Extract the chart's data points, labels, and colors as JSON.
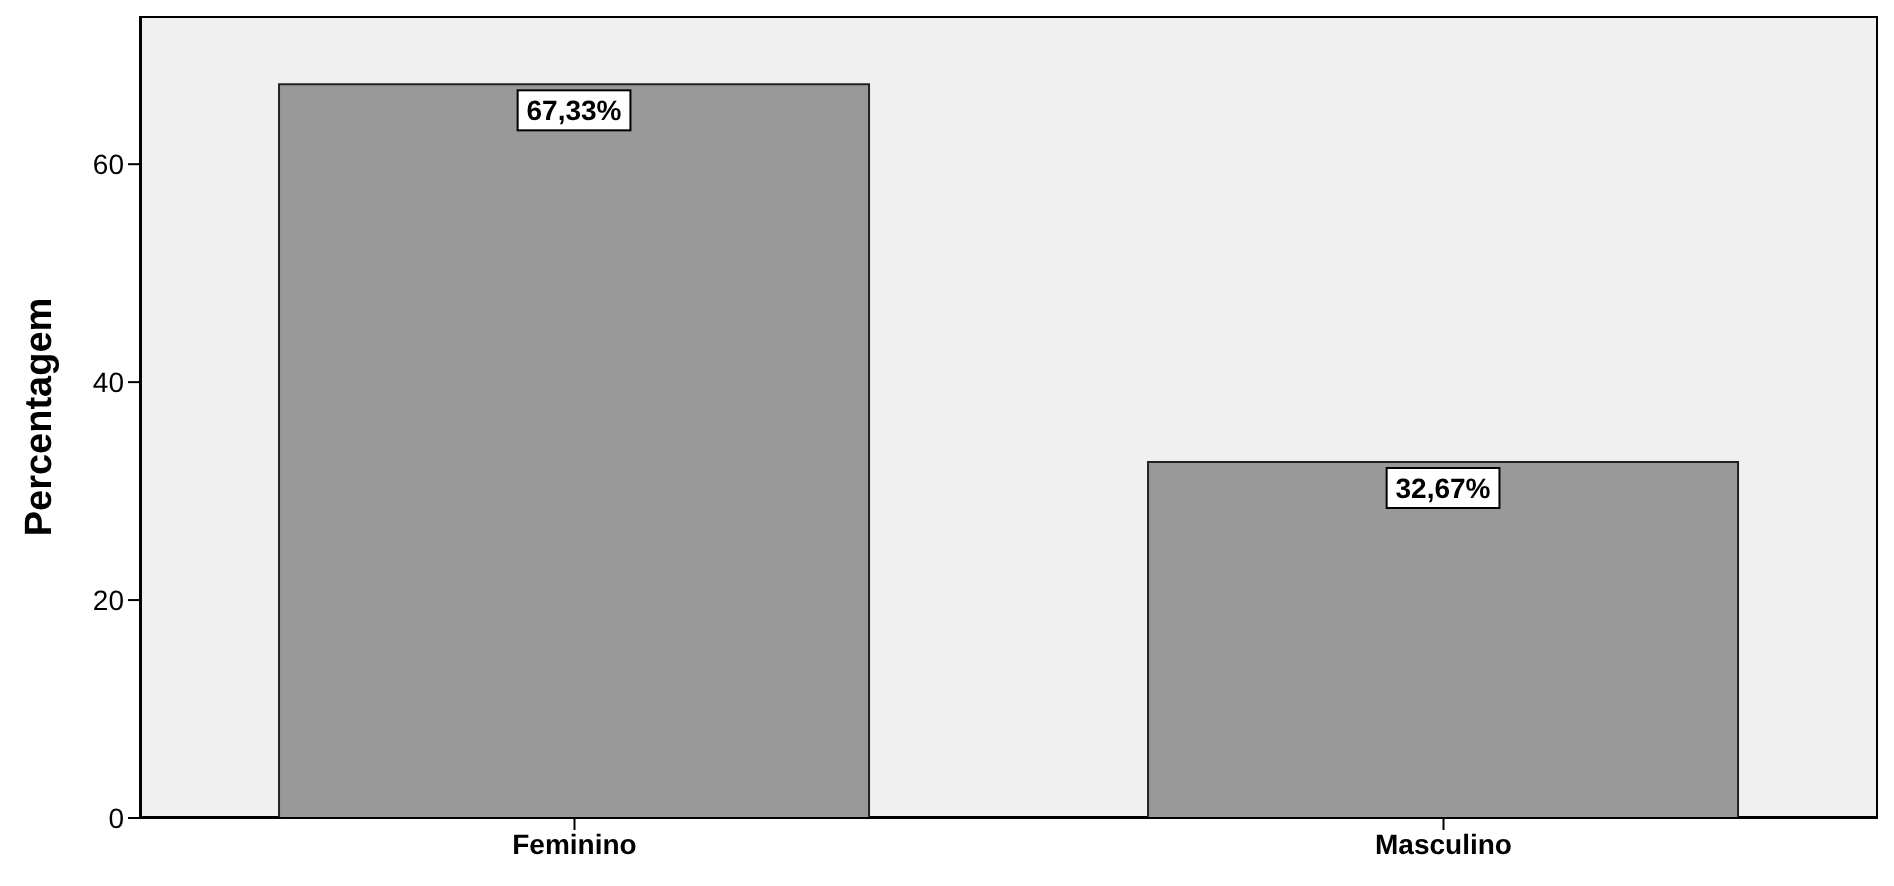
{
  "chart_data": {
    "type": "bar",
    "ylabel": "Percentagem",
    "categories": [
      "Feminino",
      "Masculino"
    ],
    "values": [
      67.33,
      32.67
    ],
    "value_labels": [
      "67,33%",
      "32,67%"
    ],
    "color": "#999999",
    "ylim": [
      0,
      73.6
    ],
    "yticks": [
      0,
      20,
      40,
      60
    ]
  }
}
